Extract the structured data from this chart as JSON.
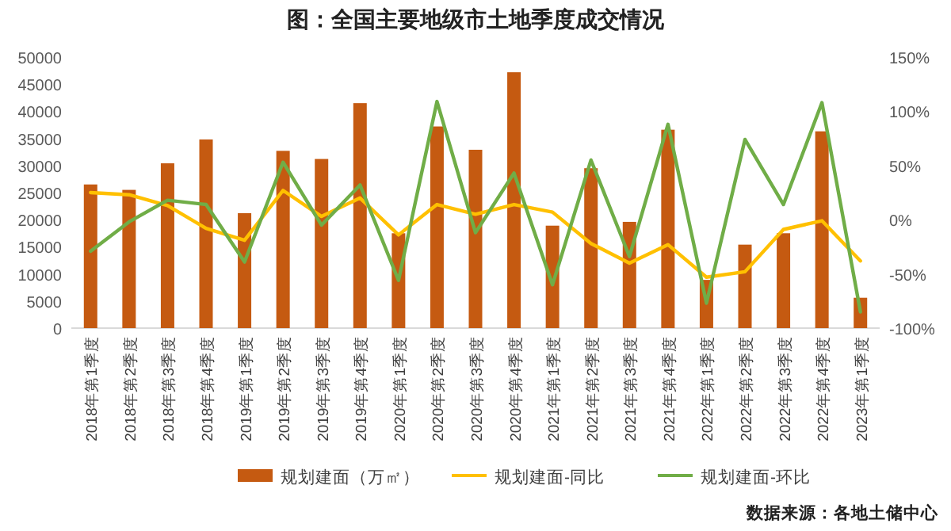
{
  "chart_data": {
    "type": "bar",
    "title": "图：全国主要地级市土地季度成交情况",
    "categories": [
      "2018年第1季度",
      "2018年第2季度",
      "2018年第3季度",
      "2018年第4季度",
      "2019年第1季度",
      "2019年第2季度",
      "2019年第3季度",
      "2019年第4季度",
      "2020年第1季度",
      "2020年第2季度",
      "2020年第3季度",
      "2020年第4季度",
      "2021年第1季度",
      "2021年第2季度",
      "2021年第3季度",
      "2021年第4季度",
      "2022年第1季度",
      "2022年第2季度",
      "2022年第3季度",
      "2022年第4季度",
      "2023年第1季度"
    ],
    "series": [
      {
        "name": "规划建面（万㎡）",
        "color": "#c55a11",
        "values": [
          26500,
          25500,
          30400,
          34800,
          21200,
          32700,
          31200,
          41500,
          17500,
          37200,
          32900,
          47200,
          18900,
          29500,
          19600,
          36600,
          8900,
          15400,
          17500,
          36300,
          5600
        ]
      },
      {
        "name": "规划建面-同比",
        "type": "line",
        "axis": "y2",
        "color": "#ffc000",
        "values": [
          25,
          23,
          13,
          -8,
          -19,
          27,
          3,
          20,
          -14,
          14,
          5,
          14,
          7,
          -22,
          -40,
          -23,
          -53,
          -48,
          -9,
          -1,
          -38
        ]
      },
      {
        "name": "规划建面-环比",
        "type": "line",
        "axis": "y2",
        "color": "#70ad47",
        "values": [
          -29,
          -2,
          18,
          14,
          -39,
          53,
          -5,
          32,
          -56,
          109,
          -12,
          43,
          -60,
          55,
          -34,
          88,
          -77,
          74,
          14,
          108,
          -85
        ]
      }
    ],
    "ylim": [
      0,
      50000
    ],
    "yticks": [
      0,
      5000,
      10000,
      15000,
      20000,
      25000,
      30000,
      35000,
      40000,
      45000,
      50000
    ],
    "y2lim": [
      -100,
      150
    ],
    "y2ticks": [
      {
        "value": -100,
        "label": "-100%"
      },
      {
        "value": -50,
        "label": "-50%"
      },
      {
        "value": 0,
        "label": "0%"
      },
      {
        "value": 50,
        "label": "50%"
      },
      {
        "value": 100,
        "label": "100%"
      },
      {
        "value": 150,
        "label": "150%"
      }
    ],
    "legend": "bottom",
    "annotations": [
      "数据来源：各地土储中心"
    ]
  }
}
